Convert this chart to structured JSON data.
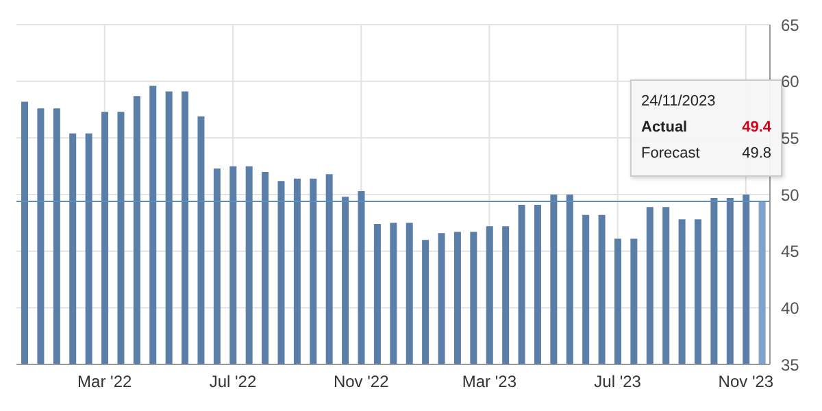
{
  "chart_data": {
    "type": "bar",
    "categories": [
      null,
      null,
      null,
      null,
      null,
      "Mar '22",
      null,
      null,
      null,
      null,
      null,
      null,
      null,
      "Jul '22",
      null,
      null,
      null,
      null,
      null,
      null,
      null,
      "Nov '22",
      null,
      null,
      null,
      null,
      null,
      null,
      null,
      "Mar '23",
      null,
      null,
      null,
      null,
      null,
      null,
      null,
      "Jul '23",
      null,
      null,
      null,
      null,
      null,
      null,
      null,
      "Nov '23",
      null
    ],
    "values": [
      58.2,
      57.6,
      57.6,
      55.4,
      55.4,
      57.3,
      57.3,
      58.7,
      59.6,
      59.1,
      59.1,
      56.9,
      52.3,
      52.5,
      52.5,
      52.0,
      51.2,
      51.4,
      51.4,
      51.8,
      49.8,
      50.3,
      47.4,
      47.5,
      47.5,
      46.0,
      46.6,
      46.7,
      46.7,
      47.2,
      47.2,
      49.1,
      49.1,
      50.0,
      50.0,
      48.2,
      48.2,
      46.1,
      46.1,
      48.9,
      48.9,
      47.8,
      47.8,
      49.7,
      49.7,
      50.0,
      49.4
    ],
    "colors": [
      "#5a7ea8",
      "#5a7ea8",
      "#5a7ea8",
      "#5a7ea8",
      "#5a7ea8",
      "#5a7ea8",
      "#5a7ea8",
      "#5a7ea8",
      "#5a7ea8",
      "#5a7ea8",
      "#5a7ea8",
      "#5a7ea8",
      "#5a7ea8",
      "#5a7ea8",
      "#5a7ea8",
      "#5a7ea8",
      "#5a7ea8",
      "#5a7ea8",
      "#5a7ea8",
      "#5a7ea8",
      "#5a7ea8",
      "#5a7ea8",
      "#5a7ea8",
      "#5a7ea8",
      "#5a7ea8",
      "#5a7ea8",
      "#5a7ea8",
      "#5a7ea8",
      "#5a7ea8",
      "#5a7ea8",
      "#5a7ea8",
      "#5a7ea8",
      "#5a7ea8",
      "#5a7ea8",
      "#5a7ea8",
      "#5a7ea8",
      "#5a7ea8",
      "#5a7ea8",
      "#5a7ea8",
      "#5a7ea8",
      "#5a7ea8",
      "#5a7ea8",
      "#5a7ea8",
      "#5a7ea8",
      "#5a7ea8",
      "#5a7ea8",
      "#7fa3cc"
    ],
    "ylim": [
      35,
      65
    ],
    "yticks": [
      35,
      40,
      45,
      50,
      55,
      60,
      65
    ],
    "grid": true,
    "ref_lines": [
      {
        "axis": "y",
        "value": 49.4,
        "color": "#5f8fb8"
      }
    ],
    "annotations": [
      "24/11/2023",
      "Actual",
      "49.4",
      "Forecast",
      "49.8"
    ]
  }
}
